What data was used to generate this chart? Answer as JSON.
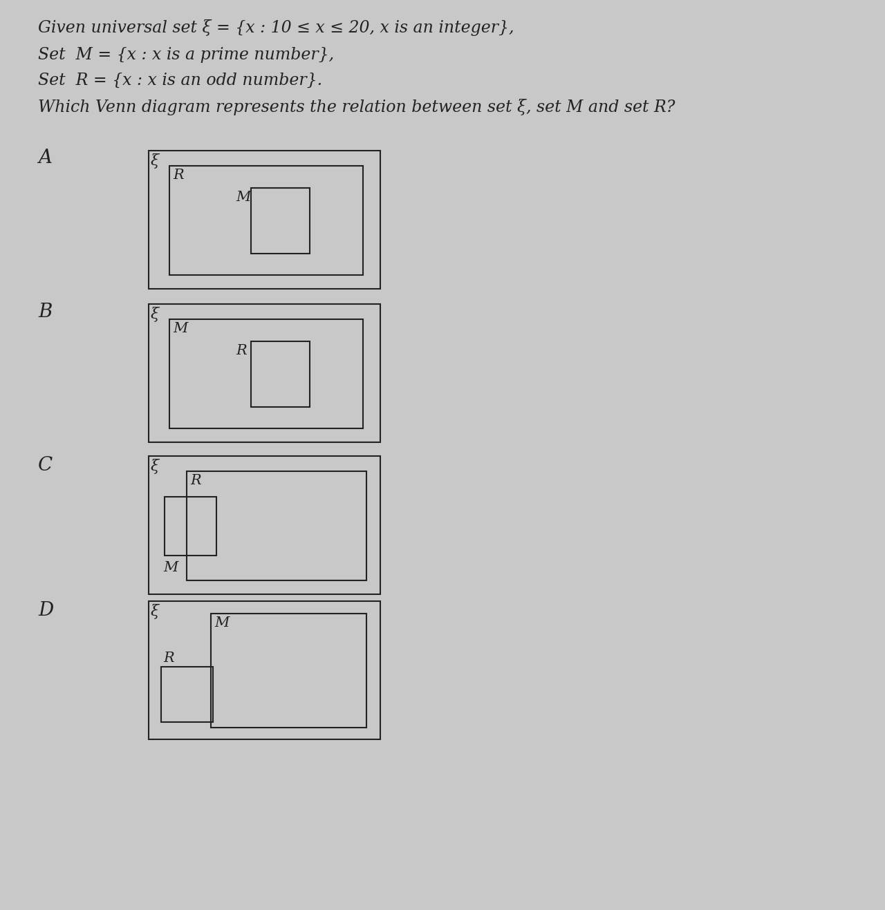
{
  "bg_color": "#c8c8c8",
  "text_color": "#222222",
  "line_color": "#222222",
  "title_lines": [
    "Given universal set ξ = {x : 10 ≤ x ≤ 20, x is an integer},",
    "Set  M = {x : x is a prime number},",
    "Set  R = {x : x is an odd number}.",
    "Which Venn diagram represents the relation between set ξ, set M and set R?"
  ],
  "options": [
    "A",
    "B",
    "C",
    "D"
  ],
  "bg_color_fig": "#c8c8c8"
}
